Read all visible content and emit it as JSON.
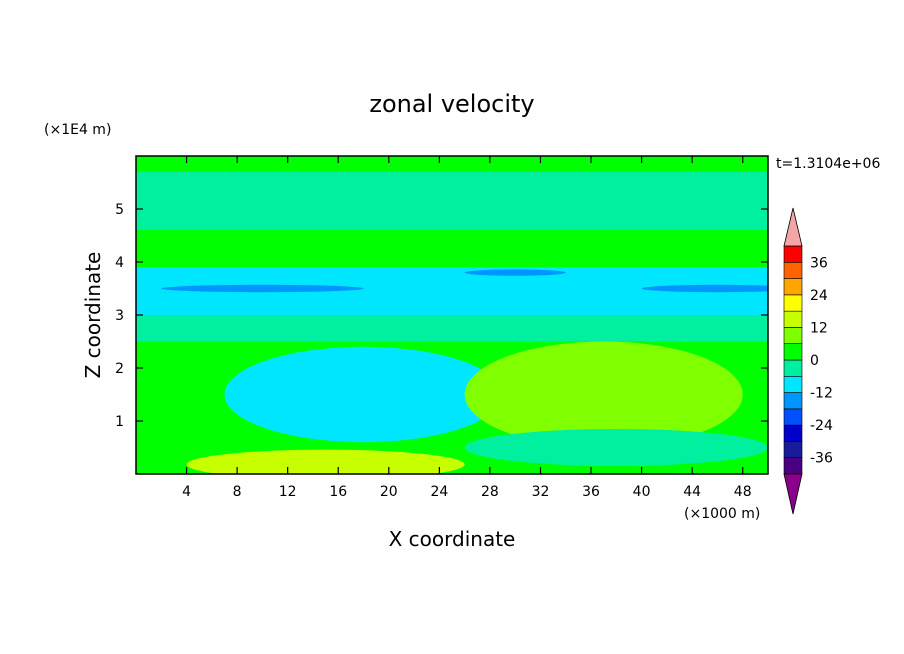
{
  "chart_data": {
    "type": "heatmap",
    "title": "zonal velocity",
    "xlabel": "X coordinate",
    "ylabel": "Z coordinate",
    "x_unit": "(×1000 m)",
    "y_unit": "(×1E4 m)",
    "time_label": "t=1.3104e+06",
    "xlim": [
      0,
      50
    ],
    "ylim": [
      0,
      6
    ],
    "x_ticks": [
      4,
      8,
      12,
      16,
      20,
      24,
      28,
      32,
      36,
      40,
      44,
      48
    ],
    "y_ticks": [
      1,
      2,
      3,
      4,
      5
    ],
    "colorbar": {
      "levels": [
        -42,
        -36,
        -30,
        -24,
        -18,
        -12,
        -6,
        0,
        6,
        12,
        18,
        24,
        30,
        36,
        42
      ],
      "tick_labels": [
        "-36",
        "-24",
        "-12",
        "0",
        "12",
        "24",
        "36"
      ],
      "tick_values": [
        -36,
        -24,
        -12,
        0,
        12,
        24,
        36
      ],
      "colors": [
        "#4b0082",
        "#1a1a9c",
        "#0000cd",
        "#0050ff",
        "#0096ff",
        "#00e6ff",
        "#00f0a0",
        "#00ff00",
        "#80ff00",
        "#c8ff00",
        "#ffff00",
        "#ffa500",
        "#ff6400",
        "#ff0000"
      ],
      "under_color": "#8b008b",
      "over_color": "#f4a6a6"
    },
    "fields": {
      "background_value": 2,
      "bands": [
        {
          "z0": 5.7,
          "z1": 6.0,
          "value": 2
        },
        {
          "z0": 5.3,
          "z1": 5.7,
          "value": -3
        },
        {
          "z0": 4.6,
          "z1": 5.3,
          "value": -2
        },
        {
          "z0": 4.2,
          "z1": 4.6,
          "value": 5
        },
        {
          "z0": 4.0,
          "z1": 4.2,
          "value": 3
        },
        {
          "z0": 3.0,
          "z1": 3.9,
          "value": -8
        },
        {
          "z0": 2.5,
          "z1": 3.0,
          "value": -5
        },
        {
          "z0": 2.2,
          "z1": 2.5,
          "value": 1
        }
      ],
      "blobs": [
        {
          "x": 18,
          "z": 1.5,
          "rx": 11,
          "rz": 0.9,
          "value": -7
        },
        {
          "x": 37,
          "z": 1.5,
          "rx": 11,
          "rz": 1.0,
          "value": 7
        },
        {
          "x": 38,
          "z": 1.5,
          "rx": 7,
          "rz": 0.6,
          "value": 11
        },
        {
          "x": 15,
          "z": 0.18,
          "rx": 11,
          "rz": 0.28,
          "value": 14
        },
        {
          "x": 38,
          "z": 0.5,
          "rx": 12,
          "rz": 0.35,
          "value": -4
        },
        {
          "x": 10,
          "z": 3.5,
          "rx": 8,
          "rz": 0.07,
          "value": -14
        },
        {
          "x": 46,
          "z": 3.5,
          "rx": 6,
          "rz": 0.07,
          "value": -14
        },
        {
          "x": 30,
          "z": 3.8,
          "rx": 4,
          "rz": 0.06,
          "value": -14
        }
      ]
    }
  }
}
